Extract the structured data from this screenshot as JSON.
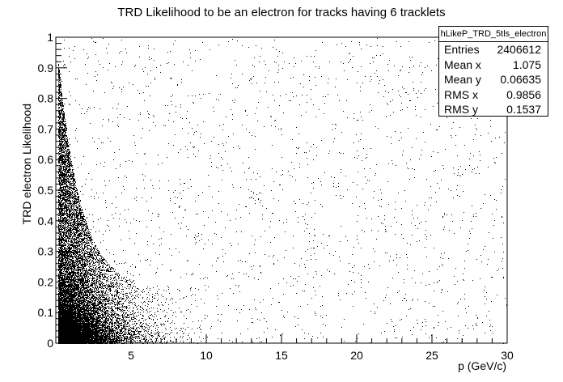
{
  "chart_data": {
    "type": "scatter",
    "title": "TRD Likelihood to be an electron for tracks having 6 tracklets",
    "xlabel": "p (GeV/c)",
    "ylabel": "TRD electron Likelihood",
    "xlim": [
      0,
      30
    ],
    "ylim": [
      0,
      1
    ],
    "x_ticks": [
      "5",
      "10",
      "15",
      "20",
      "25",
      "30"
    ],
    "y_ticks": [
      "0",
      "0.1",
      "0.2",
      "0.3",
      "0.4",
      "0.5",
      "0.6",
      "0.7",
      "0.8",
      "0.9",
      "1"
    ],
    "grid": false,
    "stats": {
      "name": "hLikeP_TRD_5tls_electron",
      "rows": [
        {
          "label": "Entries",
          "value": "2406612"
        },
        {
          "label": "Mean x",
          "value": "1.075"
        },
        {
          "label": "Mean y",
          "value": "0.06635"
        },
        {
          "label": "RMS x",
          "value": "0.9856"
        },
        {
          "label": "RMS y",
          "value": "0.1537"
        }
      ]
    },
    "density_model": {
      "description_units": "data units",
      "momentum_scale": 1.3,
      "likelihood_scale": 0.06,
      "uniform_background_fraction": 0.08
    }
  }
}
